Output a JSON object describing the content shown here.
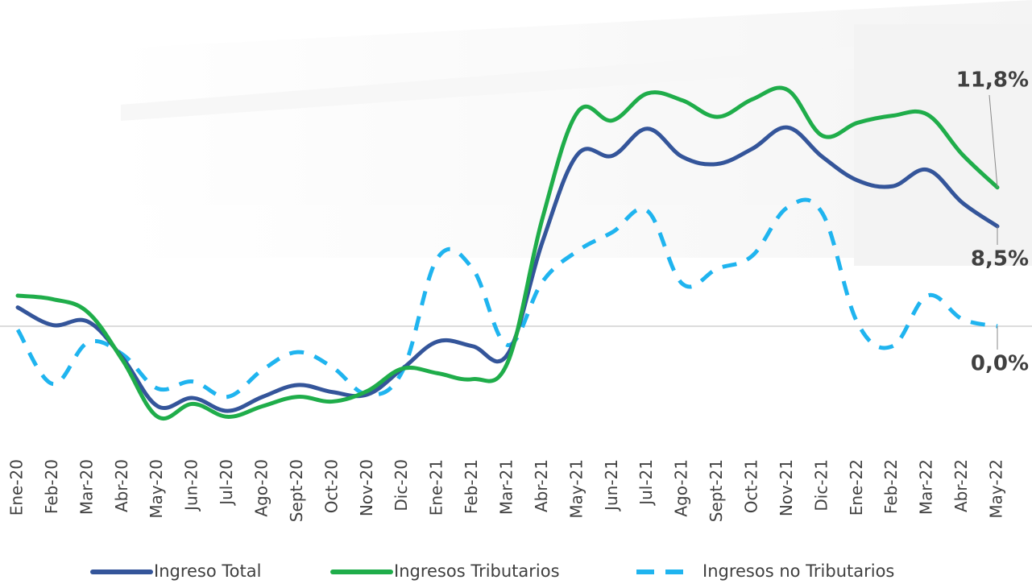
{
  "chart_data": {
    "type": "line",
    "categories": [
      "Ene-20",
      "Feb-20",
      "Mar-20",
      "Abr-20",
      "May-20",
      "Jun-20",
      "Jul-20",
      "Ago-20",
      "Sept-20",
      "Oct-20",
      "Nov-20",
      "Dic-20",
      "Ene-21",
      "Feb-21",
      "Mar-21",
      "Abr-21",
      "May-21",
      "Jun-21",
      "Jul-21",
      "Ago-21",
      "Sept-21",
      "Oct-21",
      "Nov-21",
      "Dic-21",
      "Ene-22",
      "Feb-22",
      "Mar-22",
      "Abr-22",
      "May-22"
    ],
    "ylim": [
      -10,
      25
    ],
    "series": [
      {
        "name": "Ingreso Total",
        "color": "#34559a",
        "dashed": false,
        "values": [
          1.6,
          0.1,
          0.4,
          -2.7,
          -6.8,
          -6.1,
          -7.2,
          -6.0,
          -5.0,
          -5.6,
          -5.8,
          -3.6,
          -1.3,
          -1.7,
          -2.4,
          7.2,
          14.6,
          14.5,
          16.8,
          14.4,
          13.8,
          15.1,
          16.9,
          14.4,
          12.4,
          11.9,
          13.3,
          10.5,
          8.5
        ],
        "value_labels": [
          null,
          null,
          null,
          null,
          null,
          null,
          null,
          null,
          null,
          null,
          null,
          null,
          null,
          null,
          null,
          null,
          null,
          null,
          null,
          null,
          null,
          null,
          null,
          null,
          null,
          null,
          null,
          null,
          "8,5%"
        ]
      },
      {
        "name": "Ingresos Tributarios",
        "color": "#1fad4a",
        "dashed": false,
        "values": [
          2.6,
          2.3,
          1.2,
          -2.9,
          -7.7,
          -6.6,
          -7.7,
          -6.8,
          -6.0,
          -6.4,
          -5.5,
          -3.6,
          -4.0,
          -4.5,
          -3.1,
          9.2,
          18.2,
          17.5,
          19.8,
          19.2,
          17.8,
          19.3,
          20.1,
          16.2,
          17.3,
          17.9,
          18.0,
          14.6,
          11.8
        ],
        "value_labels": [
          null,
          null,
          null,
          null,
          null,
          null,
          null,
          null,
          null,
          null,
          null,
          null,
          null,
          null,
          null,
          null,
          null,
          null,
          null,
          null,
          null,
          null,
          null,
          null,
          null,
          null,
          null,
          null,
          "11,8%"
        ]
      },
      {
        "name": "Ingresos no Tributarios",
        "color": "#1fb4ef",
        "dashed": true,
        "values": [
          -0.3,
          -4.9,
          -1.4,
          -2.4,
          -5.3,
          -4.7,
          -6.0,
          -3.7,
          -2.2,
          -3.5,
          -5.8,
          -3.8,
          5.8,
          4.9,
          -1.6,
          3.8,
          6.4,
          8.0,
          9.8,
          3.6,
          4.9,
          6.0,
          10.1,
          9.6,
          0.3,
          -1.7,
          2.6,
          0.6,
          0.0
        ],
        "value_labels": [
          null,
          null,
          null,
          null,
          null,
          null,
          null,
          null,
          null,
          null,
          null,
          null,
          null,
          null,
          null,
          null,
          null,
          null,
          null,
          null,
          null,
          null,
          null,
          null,
          null,
          null,
          null,
          null,
          "0,0%"
        ]
      }
    ]
  }
}
